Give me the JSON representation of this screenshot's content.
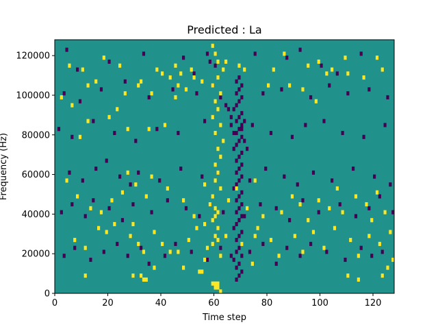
{
  "chart_data": {
    "type": "heatmap",
    "title": "Predicted : La",
    "xlabel": "Time step",
    "ylabel": "Frequency (Hz)",
    "xlim": [
      0,
      128
    ],
    "ylim": [
      0,
      128000
    ],
    "x_ticks": [
      0,
      20,
      40,
      60,
      80,
      100,
      120
    ],
    "x_tick_labels": [
      "0",
      "20",
      "40",
      "60",
      "80",
      "100",
      "120"
    ],
    "y_ticks": [
      0,
      20000,
      40000,
      60000,
      80000,
      100000,
      120000
    ],
    "y_tick_labels": [
      "0",
      "20000",
      "40000",
      "60000",
      "80000",
      "100000",
      "120000"
    ],
    "grid": false,
    "n_time_steps": 128,
    "n_freq_bins": 64,
    "freq_bin_hz": 2000,
    "levels": {
      "low": -1,
      "mid": 0,
      "high": 1
    },
    "colors": {
      "low": "#440154",
      "mid": "#21918c",
      "high": "#fde725"
    },
    "background_level": 0,
    "high_cells": [
      [
        62,
        0
      ],
      [
        61,
        1
      ],
      [
        60,
        1
      ],
      [
        61,
        2
      ],
      [
        60,
        2
      ],
      [
        59,
        2
      ],
      [
        34,
        3
      ],
      [
        33,
        3
      ],
      [
        11,
        4
      ],
      [
        32,
        4
      ],
      [
        29,
        4
      ],
      [
        55,
        5
      ],
      [
        54,
        5
      ],
      [
        48,
        6
      ],
      [
        37,
        6
      ],
      [
        74,
        7
      ],
      [
        56,
        8
      ],
      [
        62,
        9
      ],
      [
        46,
        10
      ],
      [
        33,
        10
      ],
      [
        40,
        12
      ],
      [
        59,
        12
      ],
      [
        61,
        13
      ],
      [
        75,
        14
      ],
      [
        60,
        14
      ],
      [
        61,
        16
      ],
      [
        29,
        17
      ],
      [
        59,
        18
      ],
      [
        60,
        19
      ],
      [
        61,
        20
      ],
      [
        60,
        21
      ],
      [
        58,
        22
      ],
      [
        59,
        24
      ],
      [
        62,
        26
      ],
      [
        56,
        27
      ],
      [
        60,
        28
      ],
      [
        61,
        30
      ],
      [
        60,
        32
      ],
      [
        62,
        34
      ],
      [
        61,
        36
      ],
      [
        63,
        38
      ],
      [
        60,
        40
      ],
      [
        62,
        42
      ],
      [
        59,
        44
      ],
      [
        61,
        46
      ],
      [
        60,
        48
      ],
      [
        62,
        50
      ],
      [
        59,
        52
      ],
      [
        61,
        54
      ],
      [
        63,
        56
      ],
      [
        61,
        58
      ],
      [
        60,
        60
      ],
      [
        59,
        62
      ],
      [
        5,
        57
      ],
      [
        10,
        56
      ],
      [
        18,
        59
      ],
      [
        24,
        57
      ],
      [
        38,
        56
      ],
      [
        40,
        55
      ],
      [
        45,
        57
      ],
      [
        51,
        56
      ],
      [
        64,
        58
      ],
      [
        69,
        57
      ],
      [
        82,
        56
      ],
      [
        86,
        60
      ],
      [
        95,
        57
      ],
      [
        102,
        55
      ],
      [
        121,
        59
      ],
      [
        116,
        54
      ],
      [
        109,
        59
      ],
      [
        45,
        49
      ],
      [
        49,
        51
      ],
      [
        55,
        53
      ],
      [
        88,
        52
      ],
      [
        93,
        51
      ],
      [
        99,
        58
      ],
      [
        104,
        56
      ],
      [
        110,
        55
      ],
      [
        123,
        56
      ],
      [
        31,
        52
      ],
      [
        46,
        52
      ],
      [
        52,
        54
      ],
      [
        71,
        56
      ],
      [
        80,
        52
      ],
      [
        98,
        48
      ],
      [
        12,
        43
      ],
      [
        20,
        44
      ],
      [
        9,
        39
      ],
      [
        27,
        41
      ],
      [
        35,
        41
      ],
      [
        41,
        42
      ],
      [
        2,
        49
      ],
      [
        6,
        47
      ],
      [
        12,
        52
      ],
      [
        15,
        53
      ],
      [
        23,
        46
      ],
      [
        26,
        50
      ],
      [
        32,
        53
      ],
      [
        36,
        50
      ],
      [
        43,
        54
      ],
      [
        47,
        55
      ],
      [
        4,
        28
      ],
      [
        8,
        24
      ],
      [
        13,
        21
      ],
      [
        17,
        20
      ],
      [
        21,
        23
      ],
      [
        25,
        25
      ],
      [
        27,
        30
      ],
      [
        30,
        27
      ],
      [
        34,
        24
      ],
      [
        36,
        29
      ],
      [
        42,
        26
      ],
      [
        48,
        23
      ],
      [
        52,
        19
      ],
      [
        56,
        17
      ],
      [
        65,
        23
      ],
      [
        68,
        26
      ],
      [
        72,
        21
      ],
      [
        75,
        28
      ],
      [
        78,
        19
      ],
      [
        85,
        20
      ],
      [
        89,
        24
      ],
      [
        92,
        22
      ],
      [
        95,
        18
      ],
      [
        99,
        23
      ],
      [
        103,
        21
      ],
      [
        106,
        26
      ],
      [
        108,
        20
      ],
      [
        113,
        24
      ],
      [
        117,
        22
      ],
      [
        119,
        18
      ],
      [
        121,
        25
      ],
      [
        124,
        20
      ],
      [
        7,
        13
      ],
      [
        11,
        11
      ],
      [
        16,
        16
      ],
      [
        19,
        15
      ],
      [
        22,
        17
      ],
      [
        28,
        14
      ],
      [
        31,
        12
      ],
      [
        37,
        15
      ],
      [
        43,
        10
      ],
      [
        50,
        13
      ],
      [
        53,
        16
      ],
      [
        57,
        11
      ],
      [
        64,
        14
      ],
      [
        70,
        12
      ],
      [
        76,
        16
      ],
      [
        81,
        13
      ],
      [
        84,
        9
      ],
      [
        90,
        14
      ],
      [
        93,
        10
      ],
      [
        97,
        15
      ],
      [
        101,
        11
      ],
      [
        105,
        16
      ],
      [
        111,
        13
      ],
      [
        114,
        9
      ],
      [
        118,
        14
      ],
      [
        122,
        12
      ],
      [
        126,
        15
      ],
      [
        125,
        6
      ],
      [
        123,
        4
      ],
      [
        127,
        8
      ],
      [
        110,
        4
      ],
      [
        114,
        3
      ]
    ],
    "low_cells": [
      [
        68,
        3
      ],
      [
        69,
        4
      ],
      [
        70,
        5
      ],
      [
        68,
        6
      ],
      [
        69,
        7
      ],
      [
        67,
        8
      ],
      [
        70,
        9
      ],
      [
        68,
        10
      ],
      [
        69,
        11
      ],
      [
        70,
        12
      ],
      [
        68,
        13
      ],
      [
        69,
        14
      ],
      [
        70,
        15
      ],
      [
        67,
        16
      ],
      [
        68,
        17
      ],
      [
        69,
        18
      ],
      [
        70,
        19
      ],
      [
        68,
        20
      ],
      [
        69,
        21
      ],
      [
        70,
        22
      ],
      [
        68,
        23
      ],
      [
        69,
        24
      ],
      [
        70,
        25
      ],
      [
        67,
        26
      ],
      [
        68,
        27
      ],
      [
        69,
        28
      ],
      [
        70,
        29
      ],
      [
        68,
        30
      ],
      [
        69,
        31
      ],
      [
        70,
        32
      ],
      [
        68,
        33
      ],
      [
        69,
        34
      ],
      [
        70,
        35
      ],
      [
        67,
        36
      ],
      [
        68,
        37
      ],
      [
        69,
        38
      ],
      [
        70,
        39
      ],
      [
        68,
        40
      ],
      [
        69,
        41
      ],
      [
        70,
        42
      ],
      [
        68,
        43
      ],
      [
        69,
        44
      ],
      [
        70,
        45
      ],
      [
        67,
        46
      ],
      [
        68,
        47
      ],
      [
        69,
        48
      ],
      [
        70,
        49
      ],
      [
        68,
        50
      ],
      [
        69,
        51
      ],
      [
        70,
        52
      ],
      [
        68,
        53
      ],
      [
        69,
        54
      ],
      [
        57,
        60
      ],
      [
        58,
        58
      ],
      [
        59,
        52
      ],
      [
        64,
        47
      ],
      [
        65,
        46
      ],
      [
        66,
        44
      ],
      [
        66,
        42
      ],
      [
        67,
        40
      ],
      [
        71,
        38
      ],
      [
        72,
        36
      ],
      [
        70,
        41
      ],
      [
        71,
        43
      ],
      [
        4,
        61
      ],
      [
        8,
        56
      ],
      [
        20,
        58
      ],
      [
        33,
        60
      ],
      [
        48,
        59
      ],
      [
        52,
        55
      ],
      [
        60,
        57
      ],
      [
        75,
        60
      ],
      [
        87,
        59
      ],
      [
        92,
        61
      ],
      [
        100,
        57
      ],
      [
        106,
        55
      ],
      [
        115,
        60
      ],
      [
        3,
        50
      ],
      [
        9,
        48
      ],
      [
        17,
        51
      ],
      [
        26,
        53
      ],
      [
        35,
        49
      ],
      [
        44,
        51
      ],
      [
        53,
        50
      ],
      [
        62,
        49
      ],
      [
        78,
        50
      ],
      [
        85,
        51
      ],
      [
        96,
        49
      ],
      [
        103,
        52
      ],
      [
        110,
        50
      ],
      [
        118,
        51
      ],
      [
        125,
        49
      ],
      [
        1,
        41
      ],
      [
        6,
        39
      ],
      [
        14,
        43
      ],
      [
        22,
        40
      ],
      [
        30,
        38
      ],
      [
        38,
        41
      ],
      [
        46,
        40
      ],
      [
        56,
        43
      ],
      [
        74,
        42
      ],
      [
        81,
        40
      ],
      [
        89,
        39
      ],
      [
        94,
        42
      ],
      [
        101,
        43
      ],
      [
        108,
        40
      ],
      [
        116,
        39
      ],
      [
        124,
        42
      ],
      [
        5,
        30
      ],
      [
        10,
        28
      ],
      [
        15,
        31
      ],
      [
        19,
        33
      ],
      [
        24,
        29
      ],
      [
        28,
        27
      ],
      [
        31,
        30
      ],
      [
        39,
        28
      ],
      [
        47,
        31
      ],
      [
        55,
        29
      ],
      [
        61,
        30
      ],
      [
        73,
        28
      ],
      [
        79,
        31
      ],
      [
        86,
        29
      ],
      [
        91,
        27
      ],
      [
        97,
        30
      ],
      [
        104,
        28
      ],
      [
        112,
        31
      ],
      [
        120,
        29
      ],
      [
        126,
        27
      ],
      [
        2,
        20
      ],
      [
        6,
        22
      ],
      [
        11,
        19
      ],
      [
        14,
        23
      ],
      [
        20,
        21
      ],
      [
        25,
        18
      ],
      [
        29,
        22
      ],
      [
        36,
        20
      ],
      [
        42,
        23
      ],
      [
        49,
        21
      ],
      [
        54,
        19
      ],
      [
        58,
        22
      ],
      [
        63,
        20
      ],
      [
        71,
        19
      ],
      [
        77,
        22
      ],
      [
        83,
        21
      ],
      [
        88,
        18
      ],
      [
        93,
        23
      ],
      [
        99,
        20
      ],
      [
        107,
        22
      ],
      [
        113,
        19
      ],
      [
        118,
        21
      ],
      [
        122,
        24
      ],
      [
        127,
        20
      ],
      [
        3,
        9
      ],
      [
        7,
        11
      ],
      [
        13,
        8
      ],
      [
        18,
        10
      ],
      [
        23,
        12
      ],
      [
        27,
        9
      ],
      [
        32,
        11
      ],
      [
        35,
        7
      ],
      [
        41,
        9
      ],
      [
        45,
        12
      ],
      [
        51,
        10
      ],
      [
        57,
        8
      ],
      [
        62,
        11
      ],
      [
        66,
        9
      ],
      [
        73,
        10
      ],
      [
        78,
        12
      ],
      [
        83,
        7
      ],
      [
        87,
        11
      ],
      [
        92,
        9
      ],
      [
        96,
        12
      ],
      [
        102,
        10
      ],
      [
        109,
        8
      ],
      [
        115,
        11
      ],
      [
        119,
        9
      ],
      [
        123,
        10
      ]
    ]
  }
}
